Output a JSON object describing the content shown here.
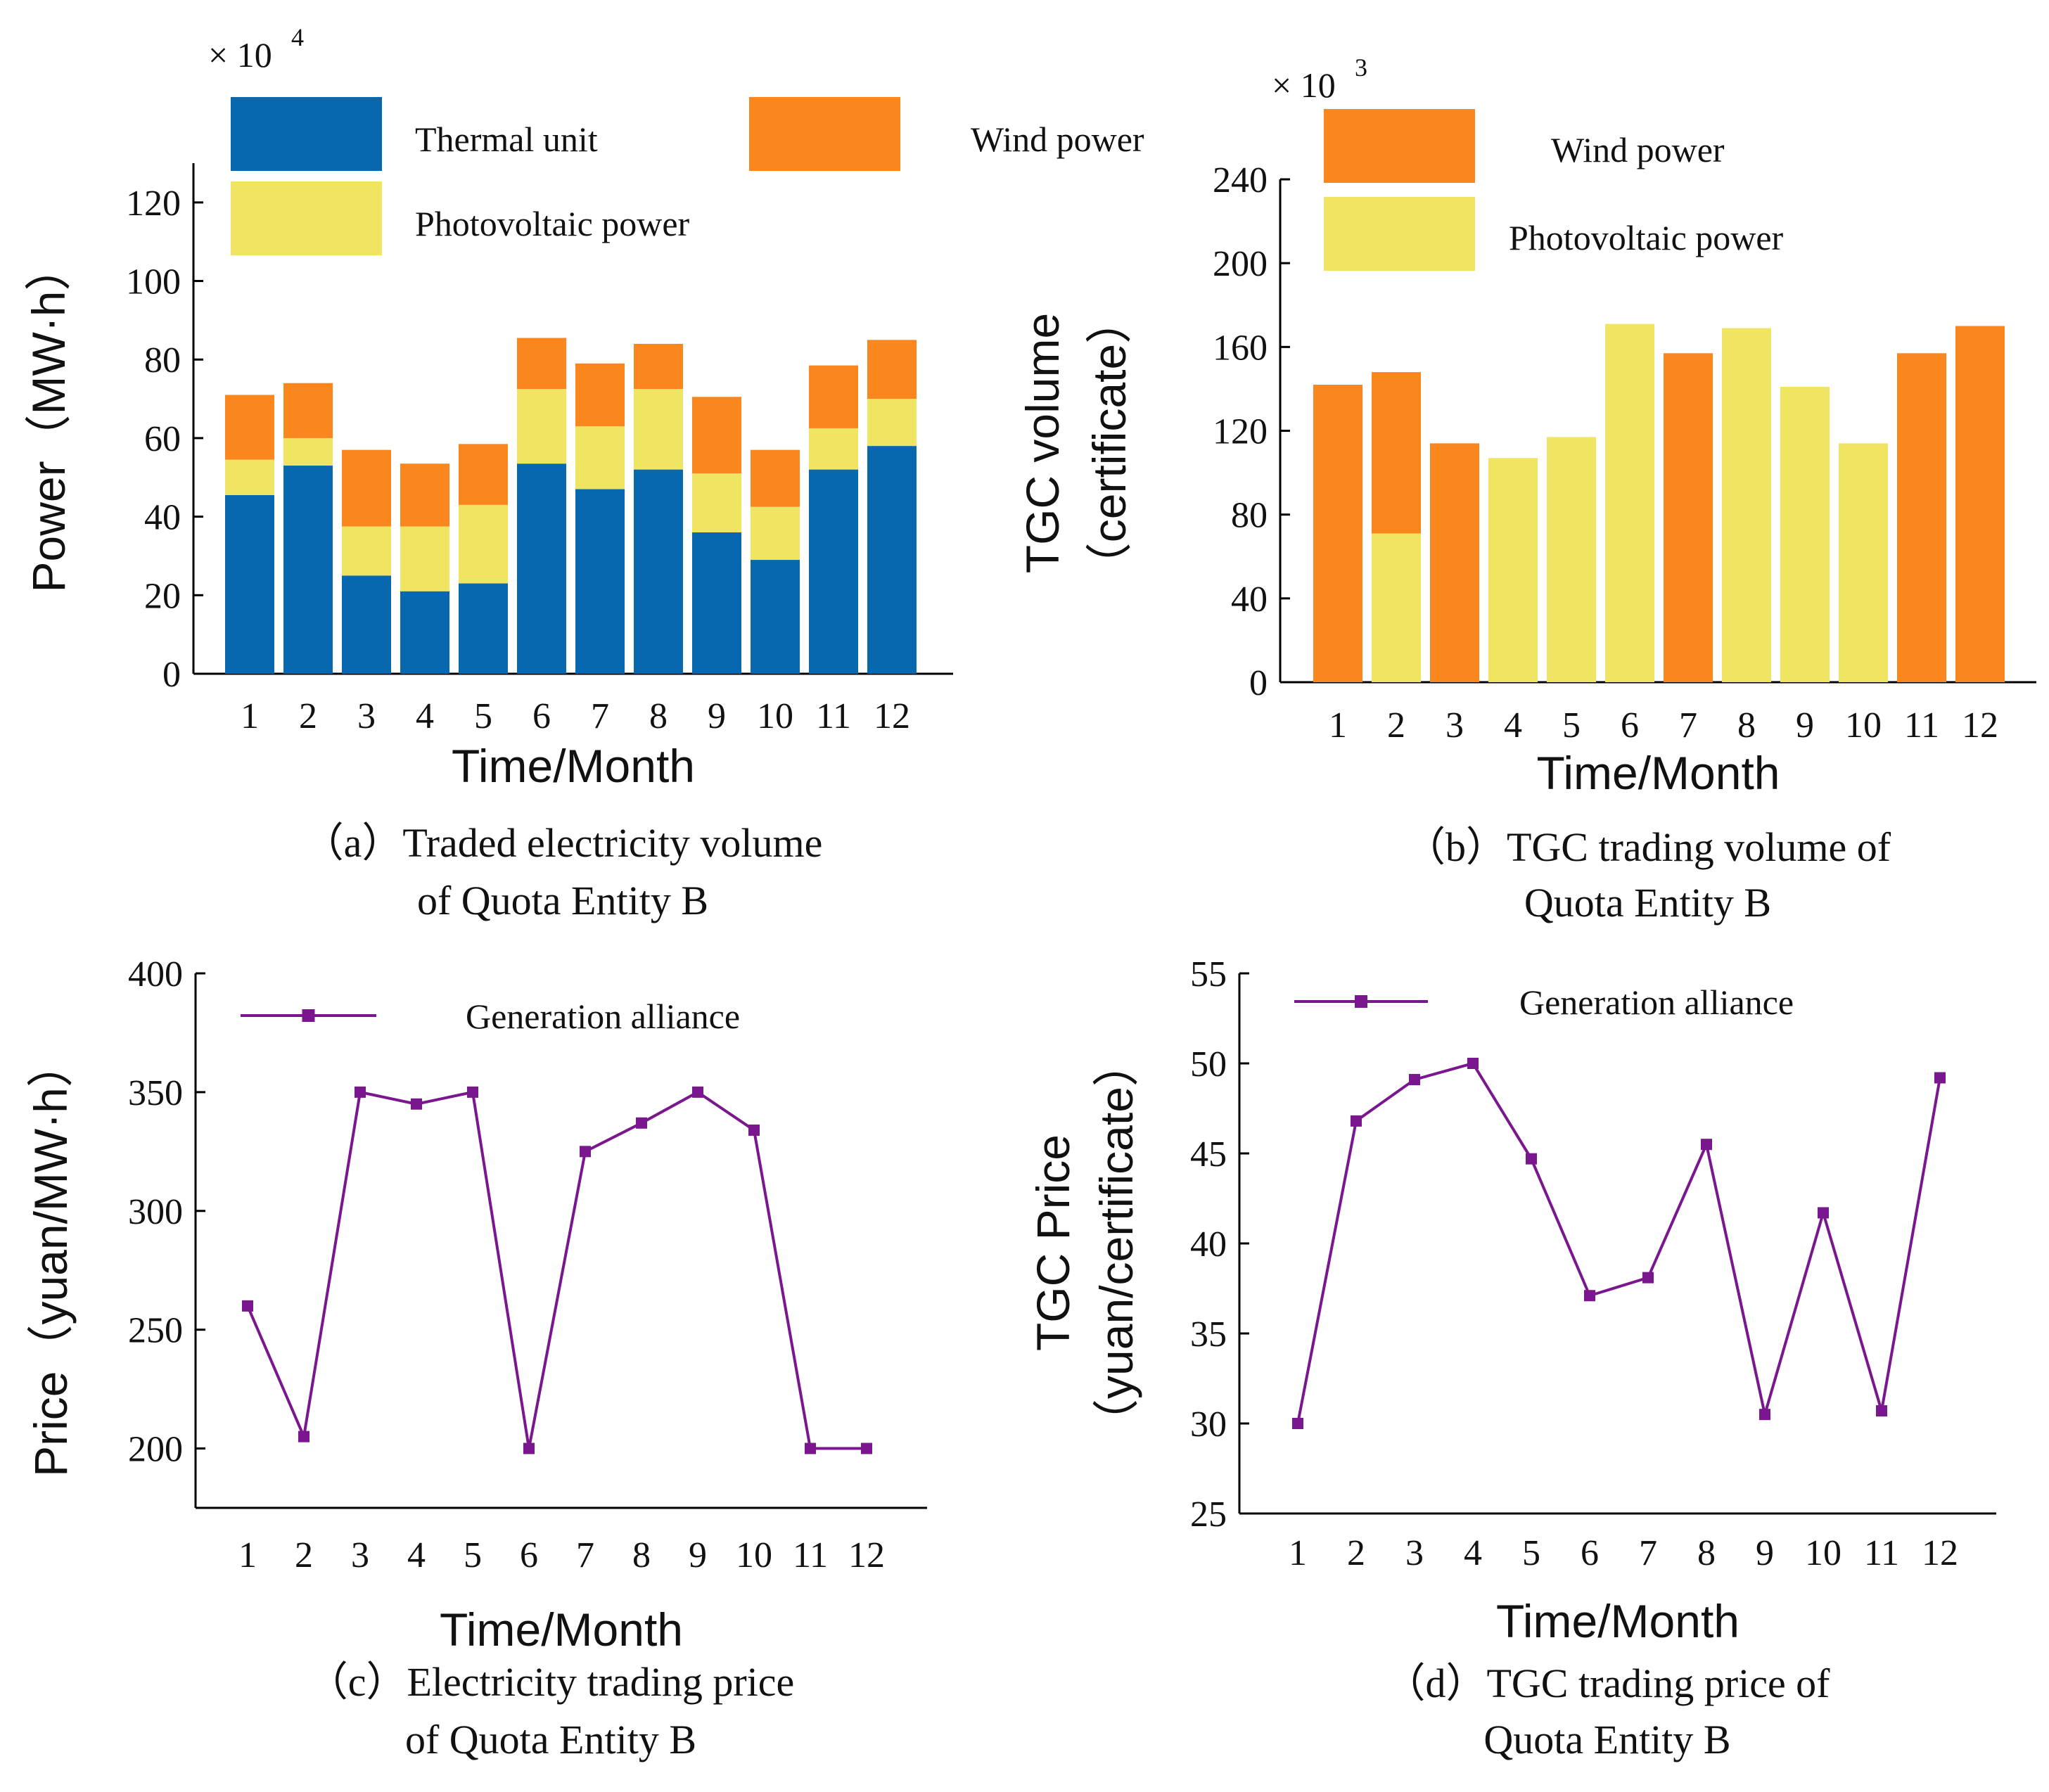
{
  "colors": {
    "thermal": "#0768B0",
    "wind": "#FA861E",
    "pv": "#EFE562",
    "line": "#7A168E",
    "axis": "#000000"
  },
  "chart_data": [
    {
      "id": "a",
      "type": "stacked-bar",
      "title": "（a）Traded electricity volume",
      "title2": "of Quota Entity B",
      "xlabel": "Time/Month",
      "ylabel": "Power（MW·h）",
      "multiplier": "× 10",
      "multiplier_exp": "4",
      "categories": [
        "1",
        "2",
        "3",
        "4",
        "5",
        "6",
        "7",
        "8",
        "9",
        "10",
        "11",
        "12"
      ],
      "ylim": [
        0,
        130
      ],
      "yticks": [
        0,
        20,
        40,
        60,
        80,
        100,
        120
      ],
      "series": [
        {
          "name": "Thermal unit",
          "color_key": "thermal",
          "values": [
            45.5,
            53,
            25,
            21,
            23,
            53.5,
            47,
            52,
            36,
            29,
            52,
            58
          ]
        },
        {
          "name": "Photovoltaic power",
          "color_key": "pv",
          "values": [
            9,
            7,
            12.5,
            16.5,
            20,
            19,
            16,
            20.5,
            15,
            13.5,
            10.5,
            12
          ]
        },
        {
          "name": "Wind power",
          "color_key": "wind",
          "values": [
            16.5,
            14,
            19.5,
            16,
            15.5,
            13,
            16,
            11.5,
            19.5,
            14.5,
            16,
            15
          ]
        }
      ],
      "legend": [
        {
          "label": "Thermal unit",
          "color_key": "thermal"
        },
        {
          "label": "Wind power",
          "color_key": "wind"
        },
        {
          "label": "Photovoltaic power",
          "color_key": "pv"
        }
      ]
    },
    {
      "id": "b",
      "type": "stacked-bar",
      "title": "（b）TGC trading volume of",
      "title2": "Quota Entity B",
      "xlabel": "Time/Month",
      "ylabel": "TGC volume",
      "ylabel2": "（certificate）",
      "multiplier": "× 10",
      "multiplier_exp": "3",
      "categories": [
        "1",
        "2",
        "3",
        "4",
        "5",
        "6",
        "7",
        "8",
        "9",
        "10",
        "11",
        "12"
      ],
      "ylim": [
        0,
        240
      ],
      "yticks": [
        0,
        40,
        80,
        120,
        160,
        200,
        240
      ],
      "series": [
        {
          "name": "Photovoltaic power",
          "color_key": "pv",
          "values": [
            0,
            71,
            0,
            107,
            117,
            171,
            0,
            169,
            141,
            114,
            0,
            0
          ]
        },
        {
          "name": "Wind power",
          "color_key": "wind",
          "values": [
            142,
            77,
            114,
            0,
            0,
            0,
            157,
            0,
            0,
            0,
            157,
            170
          ]
        }
      ],
      "legend": [
        {
          "label": "Wind power",
          "color_key": "wind"
        },
        {
          "label": "Photovoltaic power",
          "color_key": "pv"
        }
      ]
    },
    {
      "id": "c",
      "type": "line",
      "title": "（c）Electricity trading price",
      "title2": "of Quota Entity B",
      "xlabel": "Time/Month",
      "ylabel": "Price（yuan/MW·h）",
      "categories": [
        "1",
        "2",
        "3",
        "4",
        "5",
        "6",
        "7",
        "8",
        "9",
        "10",
        "11",
        "12"
      ],
      "ylim": [
        175,
        400
      ],
      "yticks": [
        200,
        250,
        300,
        350,
        400
      ],
      "series": [
        {
          "name": "Generation alliance",
          "color_key": "line",
          "values": [
            260,
            205,
            350,
            345,
            350,
            200,
            325,
            337,
            350,
            334,
            200,
            200
          ]
        }
      ],
      "legend": [
        {
          "label": "Generation alliance",
          "color_key": "line"
        }
      ]
    },
    {
      "id": "d",
      "type": "line",
      "title": "（d）TGC trading price of",
      "title2": "Quota Entity B",
      "xlabel": "Time/Month",
      "ylabel": "TGC Price",
      "ylabel2": "（yuan/certificate）",
      "categories": [
        "1",
        "2",
        "3",
        "4",
        "5",
        "6",
        "7",
        "8",
        "9",
        "10",
        "11",
        "12"
      ],
      "ylim": [
        25,
        55
      ],
      "yticks": [
        25,
        30,
        35,
        40,
        45,
        50,
        55
      ],
      "series": [
        {
          "name": "Generation alliance",
          "color_key": "line",
          "values": [
            30,
            46.8,
            49.1,
            50,
            44.7,
            37.1,
            38.1,
            45.5,
            30.5,
            41.7,
            30.7,
            49.2
          ]
        }
      ],
      "legend": [
        {
          "label": "Generation alliance",
          "color_key": "line"
        }
      ]
    }
  ]
}
